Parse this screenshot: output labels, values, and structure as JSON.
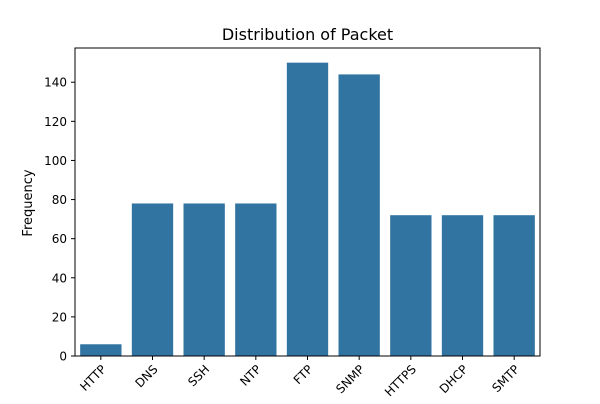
{
  "chart_data": {
    "type": "bar",
    "title": "Distribution of Packet",
    "xlabel": "",
    "ylabel": "Frequency",
    "categories": [
      "HTTP",
      "DNS",
      "SSH",
      "NTP",
      "FTP",
      "SNMP",
      "HTTPS",
      "DHCP",
      "SMTP"
    ],
    "values": [
      6,
      78,
      78,
      78,
      150,
      144,
      72,
      72,
      72
    ],
    "ylim": [
      0,
      157.5
    ],
    "yticks": [
      0,
      20,
      40,
      60,
      80,
      100,
      120,
      140
    ],
    "bar_color": "#3274a1",
    "grid": false,
    "legend": "none"
  }
}
